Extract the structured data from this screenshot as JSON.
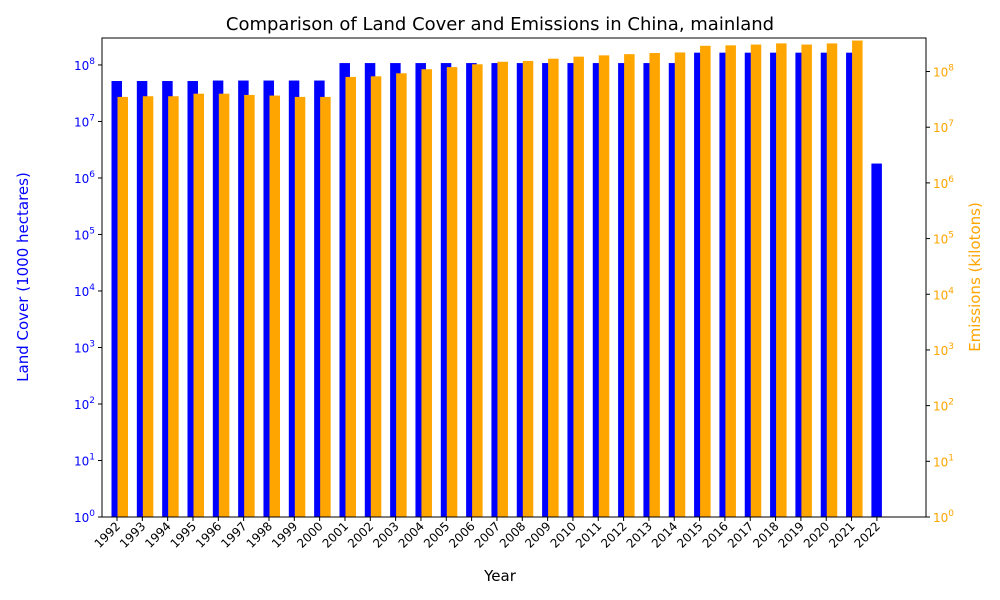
{
  "chart_data": {
    "type": "bar",
    "title": "Comparison of Land Cover and Emissions in China, mainland",
    "xlabel": "Year",
    "ylabel_left": "Land Cover (1000 hectares)",
    "ylabel_right": "Emissions (kilotons)",
    "yscale": "log",
    "ylim_left": [
      1,
      300000000
    ],
    "ylim_right": [
      1,
      400000000
    ],
    "left_ticks": [
      {
        "base": "10",
        "exp": "0",
        "value": 1
      },
      {
        "base": "10",
        "exp": "1",
        "value": 10
      },
      {
        "base": "10",
        "exp": "2",
        "value": 100
      },
      {
        "base": "10",
        "exp": "3",
        "value": 1000
      },
      {
        "base": "10",
        "exp": "4",
        "value": 10000
      },
      {
        "base": "10",
        "exp": "5",
        "value": 100000
      },
      {
        "base": "10",
        "exp": "6",
        "value": 1000000
      },
      {
        "base": "10",
        "exp": "7",
        "value": 10000000
      },
      {
        "base": "10",
        "exp": "8",
        "value": 100000000
      }
    ],
    "right_ticks": [
      {
        "base": "10",
        "exp": "0",
        "value": 1
      },
      {
        "base": "10",
        "exp": "1",
        "value": 10
      },
      {
        "base": "10",
        "exp": "2",
        "value": 100
      },
      {
        "base": "10",
        "exp": "3",
        "value": 1000
      },
      {
        "base": "10",
        "exp": "4",
        "value": 10000
      },
      {
        "base": "10",
        "exp": "5",
        "value": 100000
      },
      {
        "base": "10",
        "exp": "6",
        "value": 1000000
      },
      {
        "base": "10",
        "exp": "7",
        "value": 10000000
      },
      {
        "base": "10",
        "exp": "8",
        "value": 100000000
      }
    ],
    "categories": [
      "1992",
      "1993",
      "1994",
      "1995",
      "1996",
      "1997",
      "1998",
      "1999",
      "2000",
      "2001",
      "2002",
      "2003",
      "2004",
      "2005",
      "2006",
      "2007",
      "2008",
      "2009",
      "2010",
      "2011",
      "2012",
      "2013",
      "2014",
      "2015",
      "2016",
      "2017",
      "2018",
      "2019",
      "2020",
      "2021",
      "2022"
    ],
    "series": [
      {
        "name": "Land Cover",
        "axis": "left",
        "color": "#0000ff",
        "values": [
          52000000,
          52000000,
          52000000,
          52000000,
          53000000,
          53000000,
          53000000,
          53000000,
          53000000,
          108000000,
          108000000,
          108000000,
          108000000,
          108000000,
          108000000,
          108000000,
          108000000,
          108000000,
          108000000,
          108000000,
          108000000,
          108000000,
          108000000,
          165000000,
          165000000,
          165000000,
          165000000,
          165000000,
          165000000,
          165000000,
          1800000
        ]
      },
      {
        "name": "Emissions",
        "axis": "right",
        "color": "#ffa500",
        "values": [
          35000000,
          36000000,
          36000000,
          40000000,
          40000000,
          38000000,
          37000000,
          35000000,
          35000000,
          80000000,
          82000000,
          93000000,
          110000000,
          120000000,
          135000000,
          150000000,
          155000000,
          170000000,
          185000000,
          195000000,
          205000000,
          215000000,
          220000000,
          290000000,
          295000000,
          305000000,
          320000000,
          305000000,
          320000000,
          360000000,
          null
        ]
      }
    ]
  }
}
